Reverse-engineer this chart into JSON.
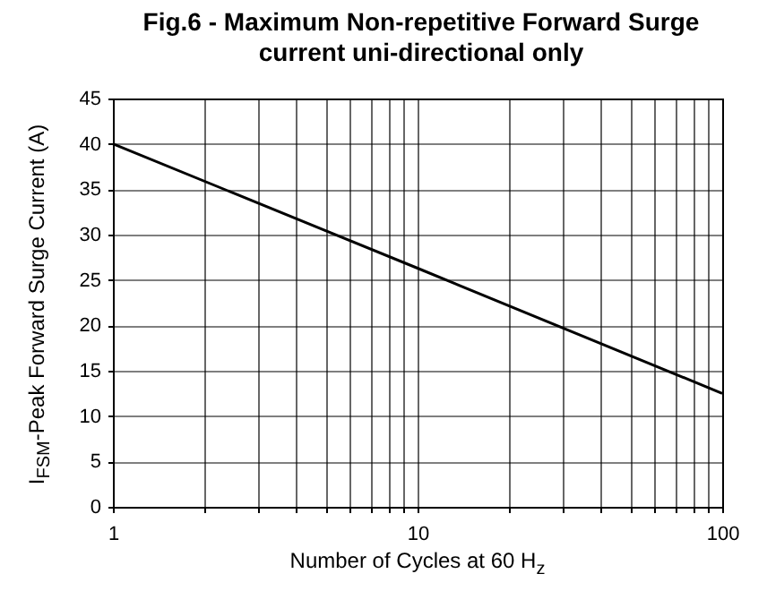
{
  "chart_data": {
    "type": "line",
    "title": "Fig.6 - Maximum Non-repetitive Forward Surge current uni-directional only",
    "xlabel": "Number of Cycles at 60 H$_{z}$",
    "ylabel": "I$_{FSM}$-Peak Forward Surge Current (A)",
    "log": "x",
    "grid": true,
    "xlim": [
      1,
      100
    ],
    "ylim": [
      0,
      45
    ],
    "xticks": [
      1,
      {
        "value": 2,
        "label": null
      },
      {
        "value": 3,
        "label": null
      },
      {
        "value": 4,
        "label": null
      },
      {
        "value": 5,
        "label": null
      },
      {
        "value": 6,
        "label": null
      },
      {
        "value": 7,
        "label": null
      },
      {
        "value": 8,
        "label": null
      },
      {
        "value": 9,
        "label": null
      },
      10,
      {
        "value": 20,
        "label": null
      },
      {
        "value": 30,
        "label": null
      },
      {
        "value": 40,
        "label": null
      },
      {
        "value": 50,
        "label": null
      },
      {
        "value": 60,
        "label": null
      },
      {
        "value": 70,
        "label": null
      },
      {
        "value": 80,
        "label": null
      },
      {
        "value": 90,
        "label": null
      },
      100
    ],
    "yticks": [
      0,
      5,
      10,
      15,
      20,
      25,
      30,
      35,
      40,
      45
    ],
    "x": [
      1,
      10,
      100
    ],
    "series": [
      {
        "color": "#000000",
        "values": [
          40,
          26.3,
          12.5
        ]
      }
    ]
  }
}
